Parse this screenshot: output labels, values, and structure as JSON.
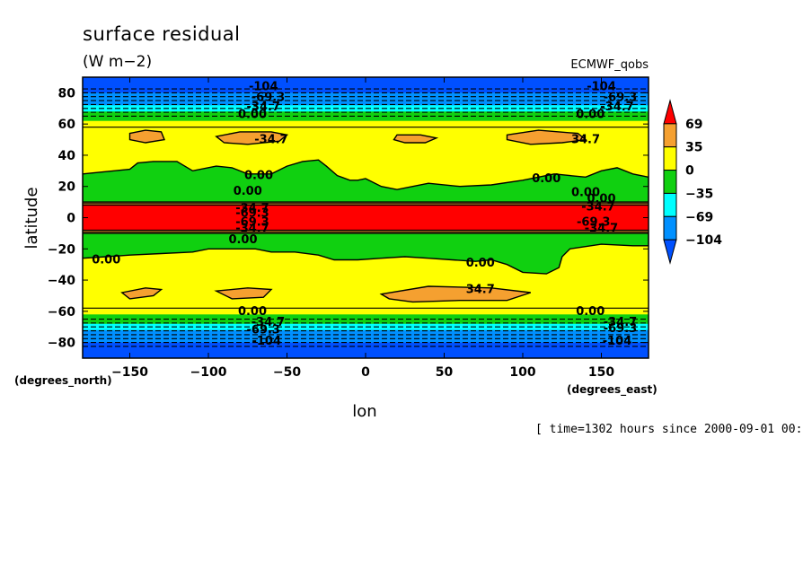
{
  "chart_data": {
    "type": "heatmap",
    "title": "surface residual",
    "units": "(W m−2)",
    "dataset": "ECMWF_qobs",
    "xlabel": "lon",
    "ylabel": "latitude",
    "x_unit_label": "(degrees_east)",
    "y_unit_label": "(degrees_north)",
    "xlim": [
      -180,
      180
    ],
    "ylim": [
      -90,
      90
    ],
    "x_ticks": [
      -150,
      -100,
      -50,
      0,
      50,
      100,
      150
    ],
    "y_ticks": [
      -80,
      -60,
      -40,
      -20,
      0,
      20,
      40,
      60,
      80
    ],
    "colorbar": {
      "levels": [
        69,
        35,
        0,
        -35,
        -69,
        -104
      ],
      "colors": [
        "#ff0000",
        "#f5a030",
        "#ffff00",
        "#10d010",
        "#00ffff",
        "#0090ff",
        "#0050ff"
      ]
    },
    "fill_bands": [
      {
        "lat": [
          80,
          90
        ],
        "value": -110
      },
      {
        "lat": [
          76,
          80
        ],
        "value": -90
      },
      {
        "lat": [
          72,
          76
        ],
        "value": -75
      },
      {
        "lat": [
          68,
          72
        ],
        "value": -50
      },
      {
        "lat": [
          62,
          68
        ],
        "value": -20
      },
      {
        "lat": [
          58,
          62
        ],
        "value": 10
      },
      {
        "lat": [
          10,
          58
        ],
        "value": 20
      },
      {
        "lat": [
          8,
          10
        ],
        "value": 40
      },
      {
        "lat": [
          -8,
          8
        ],
        "value": 80
      },
      {
        "lat": [
          -10,
          -8
        ],
        "value": 40
      },
      {
        "lat": [
          -58,
          -10
        ],
        "value": 20
      },
      {
        "lat": [
          -62,
          -58
        ],
        "value": 10
      },
      {
        "lat": [
          -68,
          -62
        ],
        "value": -20
      },
      {
        "lat": [
          -72,
          -68
        ],
        "value": -50
      },
      {
        "lat": [
          -76,
          -72
        ],
        "value": -75
      },
      {
        "lat": [
          -80,
          -76
        ],
        "value": -90
      },
      {
        "lat": [
          -90,
          -80
        ],
        "value": -110
      }
    ],
    "contour_lines": [
      {
        "lat": 82.5,
        "dashed": true
      },
      {
        "lat": 80,
        "dashed": true
      },
      {
        "lat": 77.5,
        "dashed": true
      },
      {
        "lat": 75,
        "dashed": true
      },
      {
        "lat": 72.5,
        "dashed": true
      },
      {
        "lat": 70,
        "dashed": true
      },
      {
        "lat": 67.5,
        "dashed": true
      },
      {
        "lat": 65,
        "dashed": true
      },
      {
        "lat": 58,
        "dashed": false
      },
      {
        "lat": 10,
        "dashed": false
      },
      {
        "lat": 9,
        "dashed": false
      },
      {
        "lat": 8,
        "dashed": false
      },
      {
        "lat": -8,
        "dashed": false
      },
      {
        "lat": -9,
        "dashed": false
      },
      {
        "lat": -10,
        "dashed": false
      },
      {
        "lat": -58,
        "dashed": false
      },
      {
        "lat": -65,
        "dashed": true
      },
      {
        "lat": -67.5,
        "dashed": true
      },
      {
        "lat": -70,
        "dashed": true
      },
      {
        "lat": -72.5,
        "dashed": true
      },
      {
        "lat": -75,
        "dashed": true
      },
      {
        "lat": -77.5,
        "dashed": true
      },
      {
        "lat": -80,
        "dashed": true
      },
      {
        "lat": -82.5,
        "dashed": true
      }
    ],
    "regions": [
      {
        "value": -20,
        "points": [
          [
            -180,
            10
          ],
          [
            -180,
            28
          ],
          [
            -170,
            29
          ],
          [
            -160,
            30
          ],
          [
            -150,
            31
          ],
          [
            -145,
            35
          ],
          [
            -135,
            36
          ],
          [
            -120,
            36
          ],
          [
            -110,
            30
          ],
          [
            -95,
            33
          ],
          [
            -85,
            32
          ],
          [
            -75,
            28
          ],
          [
            -60,
            28
          ],
          [
            -50,
            33
          ],
          [
            -40,
            36
          ],
          [
            -30,
            37
          ],
          [
            -25,
            33
          ],
          [
            -18,
            27
          ],
          [
            -10,
            24
          ],
          [
            -5,
            24
          ],
          [
            0,
            25
          ],
          [
            10,
            20
          ],
          [
            20,
            18
          ],
          [
            30,
            20
          ],
          [
            40,
            22
          ],
          [
            60,
            20
          ],
          [
            80,
            21
          ],
          [
            100,
            24
          ],
          [
            120,
            28
          ],
          [
            130,
            27
          ],
          [
            140,
            26
          ],
          [
            150,
            30
          ],
          [
            160,
            32
          ],
          [
            170,
            28
          ],
          [
            180,
            26
          ],
          [
            180,
            10
          ]
        ]
      },
      {
        "value": 45,
        "points": [
          [
            -150,
            54
          ],
          [
            -140,
            56
          ],
          [
            -130,
            55
          ],
          [
            -128,
            50
          ],
          [
            -140,
            48
          ],
          [
            -150,
            50
          ]
        ]
      },
      {
        "value": 45,
        "points": [
          [
            -95,
            52
          ],
          [
            -80,
            55
          ],
          [
            -60,
            55
          ],
          [
            -50,
            53
          ],
          [
            -55,
            49
          ],
          [
            -75,
            47
          ],
          [
            -90,
            48
          ]
        ]
      },
      {
        "value": 45,
        "points": [
          [
            20,
            53
          ],
          [
            35,
            53
          ],
          [
            45,
            51
          ],
          [
            38,
            48
          ],
          [
            25,
            48
          ],
          [
            18,
            50
          ]
        ]
      },
      {
        "value": 45,
        "points": [
          [
            90,
            53
          ],
          [
            110,
            56
          ],
          [
            135,
            54
          ],
          [
            140,
            50
          ],
          [
            125,
            48
          ],
          [
            105,
            47
          ],
          [
            90,
            50
          ]
        ]
      },
      {
        "value": -20,
        "points": [
          [
            -180,
            -10
          ],
          [
            -180,
            -26
          ],
          [
            -165,
            -25
          ],
          [
            -150,
            -24
          ],
          [
            -130,
            -23
          ],
          [
            -110,
            -22
          ],
          [
            -100,
            -20
          ],
          [
            -90,
            -20
          ],
          [
            -80,
            -20
          ],
          [
            -70,
            -20
          ],
          [
            -60,
            -22
          ],
          [
            -45,
            -22
          ],
          [
            -30,
            -24
          ],
          [
            -20,
            -27
          ],
          [
            -5,
            -27
          ],
          [
            10,
            -26
          ],
          [
            25,
            -25
          ],
          [
            40,
            -26
          ],
          [
            55,
            -27
          ],
          [
            70,
            -28
          ],
          [
            80,
            -27
          ],
          [
            90,
            -30
          ],
          [
            100,
            -35
          ],
          [
            115,
            -36
          ],
          [
            123,
            -32
          ],
          [
            125,
            -25
          ],
          [
            130,
            -20
          ],
          [
            150,
            -17
          ],
          [
            170,
            -18
          ],
          [
            180,
            -18
          ],
          [
            180,
            -10
          ]
        ]
      },
      {
        "value": 45,
        "points": [
          [
            -155,
            -48
          ],
          [
            -140,
            -45
          ],
          [
            -130,
            -46
          ],
          [
            -135,
            -50
          ],
          [
            -150,
            -52
          ]
        ]
      },
      {
        "value": 45,
        "points": [
          [
            -95,
            -47
          ],
          [
            -75,
            -45
          ],
          [
            -60,
            -46
          ],
          [
            -65,
            -51
          ],
          [
            -85,
            -52
          ]
        ]
      },
      {
        "value": 45,
        "points": [
          [
            10,
            -49
          ],
          [
            40,
            -44
          ],
          [
            80,
            -45
          ],
          [
            105,
            -48
          ],
          [
            90,
            -53
          ],
          [
            60,
            -53
          ],
          [
            30,
            -54
          ],
          [
            15,
            -52
          ]
        ]
      }
    ],
    "contour_labels": [
      {
        "text": "-104",
        "lon": -65,
        "lat": 84
      },
      {
        "text": "-69.3",
        "lon": -62,
        "lat": 77
      },
      {
        "text": "-34.7",
        "lon": -65,
        "lat": 71
      },
      {
        "text": "0.00",
        "lon": -72,
        "lat": 66
      },
      {
        "text": "-34.7",
        "lon": -60,
        "lat": 50
      },
      {
        "text": "0.00",
        "lon": -68,
        "lat": 27
      },
      {
        "text": "0.00",
        "lon": -75,
        "lat": 17
      },
      {
        "text": "-34.7",
        "lon": -72,
        "lat": 6
      },
      {
        "text": "-69.3",
        "lon": -72,
        "lat": 3
      },
      {
        "text": "-69.3",
        "lon": -72,
        "lat": -3
      },
      {
        "text": "-34.7",
        "lon": -72,
        "lat": -7
      },
      {
        "text": "0.00",
        "lon": -78,
        "lat": -14
      },
      {
        "text": "0.00",
        "lon": -165,
        "lat": -27
      },
      {
        "text": "0.00",
        "lon": 73,
        "lat": -29
      },
      {
        "text": "34.7",
        "lon": 73,
        "lat": -46
      },
      {
        "text": "0.00",
        "lon": -72,
        "lat": -60
      },
      {
        "text": "-34.7",
        "lon": -62,
        "lat": -67
      },
      {
        "text": "-69.3",
        "lon": -65,
        "lat": -72
      },
      {
        "text": "-104",
        "lon": -63,
        "lat": -79
      },
      {
        "text": "-104",
        "lon": 150,
        "lat": 84
      },
      {
        "text": "-69.3",
        "lon": 162,
        "lat": 77
      },
      {
        "text": "-34.7",
        "lon": 160,
        "lat": 71
      },
      {
        "text": "0.00",
        "lon": 143,
        "lat": 66
      },
      {
        "text": "34.7",
        "lon": 140,
        "lat": 50
      },
      {
        "text": "0.00",
        "lon": 115,
        "lat": 25
      },
      {
        "text": "0.00",
        "lon": 140,
        "lat": 16
      },
      {
        "text": "0.00",
        "lon": 150,
        "lat": 12
      },
      {
        "text": "-34.7",
        "lon": 148,
        "lat": 7
      },
      {
        "text": "-69.3",
        "lon": 145,
        "lat": -3
      },
      {
        "text": "-34.7",
        "lon": 150,
        "lat": -7
      },
      {
        "text": "0.00",
        "lon": 143,
        "lat": -60
      },
      {
        "text": "-34.7",
        "lon": 162,
        "lat": -67
      },
      {
        "text": "-69.3",
        "lon": 162,
        "lat": -71
      },
      {
        "text": "-104",
        "lon": 160,
        "lat": -79
      }
    ],
    "footer": "[ time=1302 hours since 2000-09-01 00:"
  }
}
